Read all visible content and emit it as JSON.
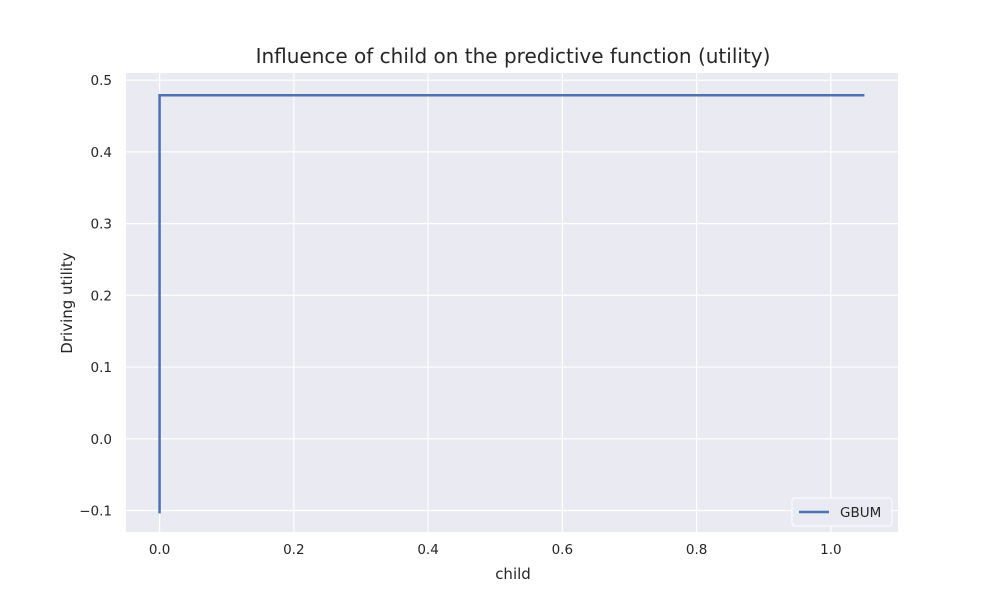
{
  "chart_data": {
    "type": "line",
    "title": "Influence of child on the predictive function (utility)",
    "xlabel": "child",
    "ylabel": "Driving utility",
    "xlim": [
      -0.05,
      1.1
    ],
    "ylim": [
      -0.13,
      0.51
    ],
    "x_ticks": [
      0.0,
      0.2,
      0.4,
      0.6,
      0.8,
      1.0
    ],
    "x_tick_labels": [
      "0.0",
      "0.2",
      "0.4",
      "0.6",
      "0.8",
      "1.0"
    ],
    "y_ticks": [
      -0.1,
      0.0,
      0.1,
      0.2,
      0.3,
      0.4,
      0.5
    ],
    "y_tick_labels": [
      "−0.1",
      "0.0",
      "0.1",
      "0.2",
      "0.3",
      "0.4",
      "0.5"
    ],
    "grid": true,
    "legend_position": "lower-right",
    "series": [
      {
        "name": "GBUM",
        "color": "#4c72b0",
        "x": [
          0.0,
          0.0,
          1.05
        ],
        "y": [
          -0.104,
          0.479,
          0.479
        ]
      }
    ]
  },
  "colors": {
    "plot_background": "#eaeaf2",
    "grid": "#ffffff",
    "text": "#262626"
  }
}
